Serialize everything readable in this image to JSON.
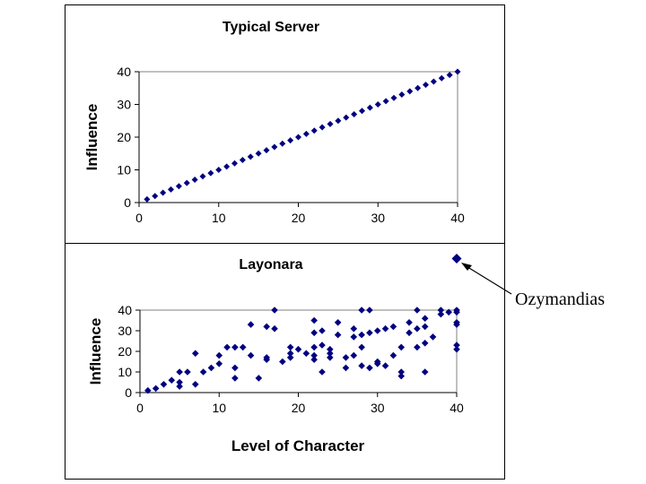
{
  "chart_data": [
    {
      "type": "scatter",
      "title": "Typical Server",
      "xlabel": "",
      "ylabel": "Influence",
      "xlim": [
        0,
        40
      ],
      "ylim": [
        0,
        40
      ],
      "xticks": [
        "0",
        "10",
        "20",
        "30",
        "40"
      ],
      "yticks": [
        "0",
        "10",
        "20",
        "30",
        "40"
      ],
      "marker_color": "#000080",
      "points": [
        [
          1,
          1
        ],
        [
          2,
          2
        ],
        [
          3,
          3
        ],
        [
          4,
          4
        ],
        [
          5,
          5
        ],
        [
          6,
          6
        ],
        [
          7,
          7
        ],
        [
          8,
          8
        ],
        [
          9,
          9
        ],
        [
          10,
          10
        ],
        [
          11,
          11
        ],
        [
          12,
          12
        ],
        [
          13,
          13
        ],
        [
          14,
          14
        ],
        [
          15,
          15
        ],
        [
          16,
          16
        ],
        [
          17,
          17
        ],
        [
          18,
          18
        ],
        [
          19,
          19
        ],
        [
          20,
          20
        ],
        [
          21,
          21
        ],
        [
          22,
          22
        ],
        [
          23,
          23
        ],
        [
          24,
          24
        ],
        [
          25,
          25
        ],
        [
          26,
          26
        ],
        [
          27,
          27
        ],
        [
          28,
          28
        ],
        [
          29,
          29
        ],
        [
          30,
          30
        ],
        [
          31,
          31
        ],
        [
          32,
          32
        ],
        [
          33,
          33
        ],
        [
          34,
          34
        ],
        [
          35,
          35
        ],
        [
          36,
          36
        ],
        [
          37,
          37
        ],
        [
          38,
          38
        ],
        [
          39,
          39
        ],
        [
          40,
          40
        ]
      ]
    },
    {
      "type": "scatter",
      "title": "Layonara",
      "xlabel": "Level of Character",
      "ylabel": "Influence",
      "xlim": [
        0,
        40
      ],
      "ylim": [
        0,
        40
      ],
      "xticks": [
        "0",
        "10",
        "20",
        "30",
        "40"
      ],
      "yticks": [
        "0",
        "10",
        "20",
        "30",
        "40"
      ],
      "marker_color": "#000080",
      "points": [
        [
          1,
          1
        ],
        [
          2,
          2
        ],
        [
          3,
          4
        ],
        [
          4,
          6
        ],
        [
          5,
          10
        ],
        [
          5,
          5
        ],
        [
          5,
          3
        ],
        [
          6,
          10
        ],
        [
          7,
          19
        ],
        [
          7,
          4
        ],
        [
          8,
          10
        ],
        [
          9,
          12
        ],
        [
          10,
          18
        ],
        [
          10,
          14
        ],
        [
          11,
          22
        ],
        [
          12,
          22
        ],
        [
          12,
          12
        ],
        [
          12,
          7
        ],
        [
          13,
          22
        ],
        [
          14,
          33
        ],
        [
          14,
          18
        ],
        [
          15,
          7
        ],
        [
          16,
          32
        ],
        [
          16,
          17
        ],
        [
          16,
          16
        ],
        [
          17,
          40
        ],
        [
          17,
          31
        ],
        [
          18,
          15
        ],
        [
          19,
          22
        ],
        [
          19,
          19
        ],
        [
          19,
          17
        ],
        [
          20,
          21
        ],
        [
          21,
          19
        ],
        [
          22,
          35
        ],
        [
          22,
          29
        ],
        [
          22,
          22
        ],
        [
          22,
          18
        ],
        [
          22,
          16
        ],
        [
          23,
          30
        ],
        [
          23,
          23
        ],
        [
          23,
          10
        ],
        [
          24,
          21
        ],
        [
          24,
          19
        ],
        [
          24,
          17
        ],
        [
          25,
          34
        ],
        [
          25,
          28
        ],
        [
          26,
          17
        ],
        [
          26,
          12
        ],
        [
          27,
          31
        ],
        [
          27,
          27
        ],
        [
          27,
          18
        ],
        [
          28,
          40
        ],
        [
          28,
          28
        ],
        [
          28,
          22
        ],
        [
          28,
          13
        ],
        [
          29,
          40
        ],
        [
          29,
          29
        ],
        [
          29,
          12
        ],
        [
          30,
          30
        ],
        [
          30,
          15
        ],
        [
          30,
          14
        ],
        [
          31,
          31
        ],
        [
          31,
          13
        ],
        [
          32,
          32
        ],
        [
          32,
          18
        ],
        [
          33,
          22
        ],
        [
          33,
          10
        ],
        [
          33,
          8
        ],
        [
          34,
          34
        ],
        [
          34,
          29
        ],
        [
          35,
          40
        ],
        [
          35,
          31
        ],
        [
          35,
          22
        ],
        [
          36,
          36
        ],
        [
          36,
          32
        ],
        [
          36,
          24
        ],
        [
          36,
          10
        ],
        [
          37,
          27
        ],
        [
          38,
          40
        ],
        [
          38,
          38
        ],
        [
          39,
          39
        ],
        [
          40,
          40
        ],
        [
          40,
          39
        ],
        [
          40,
          34
        ],
        [
          40,
          33
        ],
        [
          40,
          23
        ],
        [
          40,
          21
        ]
      ],
      "outlier": {
        "label": "Ozymandias",
        "x": 40,
        "y": 65
      }
    }
  ]
}
